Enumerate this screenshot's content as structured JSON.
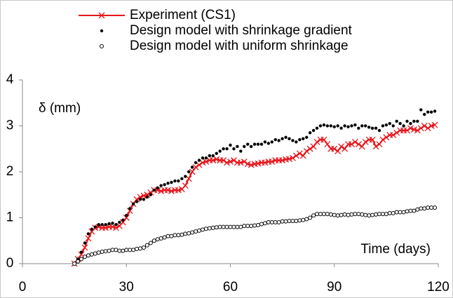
{
  "chart_data": {
    "type": "scatter",
    "xlabel": "Time (days)",
    "ylabel": "δ (mm)",
    "xlim": [
      0,
      120
    ],
    "ylim": [
      0,
      4
    ],
    "xticks": [
      0,
      30,
      60,
      90,
      120
    ],
    "yticks": [
      0,
      1,
      2,
      3,
      4
    ],
    "grid": false,
    "legend": "top",
    "x": [
      15,
      16,
      17,
      18,
      19,
      20,
      21,
      22,
      23,
      24,
      25,
      26,
      27,
      28,
      29,
      30,
      31,
      32,
      33,
      34,
      35,
      36,
      37,
      38,
      39,
      40,
      41,
      42,
      43,
      44,
      45,
      46,
      47,
      48,
      49,
      50,
      51,
      52,
      53,
      54,
      55,
      56,
      57,
      58,
      59,
      60,
      61,
      62,
      63,
      64,
      65,
      66,
      67,
      68,
      69,
      70,
      71,
      72,
      73,
      74,
      75,
      76,
      77,
      78,
      79,
      80,
      81,
      82,
      83,
      84,
      85,
      86,
      87,
      88,
      89,
      90,
      91,
      92,
      93,
      94,
      95,
      96,
      97,
      98,
      99,
      100,
      101,
      102,
      103,
      104,
      105,
      106,
      107,
      108,
      109,
      110,
      111,
      112,
      113,
      114,
      115,
      116,
      117,
      118,
      119
    ],
    "series": [
      {
        "name": "Experiment (CS1)",
        "color": "#e8161b",
        "marker": "x",
        "line": true,
        "values": [
          0,
          0.1,
          0.2,
          0.35,
          0.55,
          0.7,
          0.78,
          0.8,
          0.78,
          0.78,
          0.8,
          0.8,
          0.78,
          0.82,
          0.9,
          1.0,
          1.15,
          1.3,
          1.4,
          1.45,
          1.48,
          1.5,
          1.55,
          1.6,
          1.6,
          1.58,
          1.6,
          1.6,
          1.58,
          1.6,
          1.6,
          1.62,
          1.7,
          1.85,
          2.0,
          2.1,
          2.15,
          2.2,
          2.22,
          2.25,
          2.25,
          2.27,
          2.25,
          2.25,
          2.2,
          2.22,
          2.25,
          2.2,
          2.2,
          2.22,
          2.17,
          2.15,
          2.17,
          2.18,
          2.2,
          2.2,
          2.22,
          2.22,
          2.25,
          2.25,
          2.25,
          2.27,
          2.28,
          2.3,
          2.35,
          2.4,
          2.35,
          2.45,
          2.5,
          2.55,
          2.65,
          2.7,
          2.7,
          2.6,
          2.5,
          2.5,
          2.45,
          2.55,
          2.5,
          2.6,
          2.6,
          2.65,
          2.6,
          2.55,
          2.65,
          2.7,
          2.7,
          2.55,
          2.6,
          2.7,
          2.75,
          2.8,
          2.8,
          2.85,
          2.9,
          2.9,
          2.9,
          2.95,
          2.92,
          2.9,
          2.95,
          3.0,
          2.95,
          3.0,
          3.02
        ]
      },
      {
        "name": "Design model with shrinkage gradient",
        "color": "#000000",
        "marker": "dot",
        "line": false,
        "values": [
          0,
          0.1,
          0.25,
          0.45,
          0.65,
          0.75,
          0.8,
          0.85,
          0.85,
          0.85,
          0.87,
          0.88,
          0.85,
          0.9,
          0.95,
          1.05,
          1.2,
          1.3,
          1.35,
          1.4,
          1.4,
          1.45,
          1.5,
          1.6,
          1.65,
          1.7,
          1.72,
          1.75,
          1.77,
          1.8,
          1.8,
          1.85,
          1.9,
          2.0,
          2.1,
          2.2,
          2.25,
          2.3,
          2.3,
          2.35,
          2.35,
          2.4,
          2.45,
          2.5,
          2.5,
          2.58,
          2.5,
          2.55,
          2.45,
          2.55,
          2.6,
          2.55,
          2.6,
          2.6,
          2.6,
          2.65,
          2.62,
          2.65,
          2.7,
          2.68,
          2.72,
          2.75,
          2.72,
          2.68,
          2.65,
          2.7,
          2.72,
          2.75,
          2.85,
          2.9,
          2.95,
          3.0,
          3.02,
          3.0,
          3.0,
          2.98,
          3.0,
          2.95,
          3.0,
          2.98,
          3.0,
          3.02,
          2.95,
          3.0,
          3.0,
          2.97,
          2.95,
          2.95,
          2.9,
          3.0,
          3.02,
          3.05,
          3.0,
          3.1,
          3.05,
          3.0,
          3.1,
          3.05,
          3.1,
          3.1,
          3.35,
          3.25,
          3.3,
          3.3,
          3.32
        ]
      },
      {
        "name": "Design model with uniform shrinkage",
        "color": "#000000",
        "marker": "circle",
        "line": false,
        "values": [
          0,
          0.05,
          0.1,
          0.15,
          0.18,
          0.2,
          0.22,
          0.24,
          0.26,
          0.27,
          0.28,
          0.3,
          0.3,
          0.28,
          0.28,
          0.3,
          0.3,
          0.3,
          0.32,
          0.33,
          0.35,
          0.4,
          0.45,
          0.5,
          0.53,
          0.55,
          0.57,
          0.6,
          0.6,
          0.62,
          0.62,
          0.63,
          0.65,
          0.66,
          0.68,
          0.7,
          0.72,
          0.74,
          0.76,
          0.77,
          0.78,
          0.79,
          0.8,
          0.8,
          0.8,
          0.8,
          0.8,
          0.8,
          0.8,
          0.82,
          0.82,
          0.82,
          0.83,
          0.84,
          0.86,
          0.88,
          0.9,
          0.9,
          0.9,
          0.9,
          0.92,
          0.92,
          0.93,
          0.93,
          0.93,
          0.94,
          0.95,
          0.97,
          1.0,
          1.05,
          1.08,
          1.08,
          1.08,
          1.08,
          1.07,
          1.06,
          1.05,
          1.06,
          1.07,
          1.06,
          1.07,
          1.08,
          1.08,
          1.07,
          1.06,
          1.05,
          1.06,
          1.07,
          1.08,
          1.08,
          1.08,
          1.1,
          1.1,
          1.12,
          1.12,
          1.12,
          1.14,
          1.15,
          1.15,
          1.18,
          1.2,
          1.2,
          1.22,
          1.22,
          1.22
        ]
      }
    ]
  }
}
